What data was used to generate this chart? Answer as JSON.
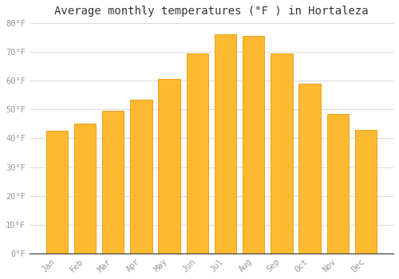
{
  "title": "Average monthly temperatures (°F ) in Hortaleza",
  "months": [
    "Jan",
    "Feb",
    "Mar",
    "Apr",
    "May",
    "Jun",
    "Jul",
    "Aug",
    "Sep",
    "Oct",
    "Nov",
    "Dec"
  ],
  "values": [
    42.5,
    45.0,
    49.5,
    53.5,
    60.5,
    69.5,
    76.0,
    75.5,
    69.5,
    59.0,
    48.5,
    43.0
  ],
  "bar_color": "#FDB931",
  "bar_edge_color": "#E8960A",
  "background_color": "#ffffff",
  "plot_bg_color": "#ffffff",
  "ylim": [
    0,
    80
  ],
  "yticks": [
    0,
    10,
    20,
    30,
    40,
    50,
    60,
    70,
    80
  ],
  "ytick_labels": [
    "0°F",
    "10°F",
    "20°F",
    "30°F",
    "40°F",
    "50°F",
    "60°F",
    "70°F",
    "80°F"
  ],
  "grid_color": "#dddddd",
  "title_fontsize": 10,
  "tick_fontsize": 7.5,
  "tick_color": "#999999",
  "font_family": "monospace",
  "bar_width": 0.78
}
